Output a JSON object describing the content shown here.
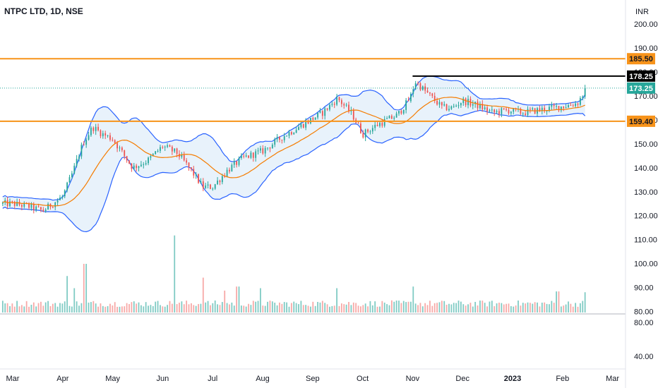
{
  "chart_data": {
    "type": "candlestick",
    "title": "NTPC LTD, 1D, NSE",
    "currency": "INR",
    "price_axis": {
      "ticks": [
        "200.00",
        "190.00",
        "180.00",
        "170.00",
        "160.00",
        "150.00",
        "140.00",
        "130.00",
        "120.00",
        "110.00",
        "100.00",
        "90.00",
        "80.00"
      ],
      "ylim": [
        79,
        210
      ]
    },
    "volume_axis": {
      "ticks": [
        "80.00",
        "40.00"
      ]
    },
    "time_axis": {
      "ticks": [
        "Mar",
        "Apr",
        "May",
        "Jun",
        "Jul",
        "Aug",
        "Sep",
        "Oct",
        "Nov",
        "Dec",
        "2023",
        "Feb",
        "Mar"
      ]
    },
    "price_labels": [
      {
        "text": "185.50",
        "value": 185.5,
        "color": "#f7931a",
        "text_color": "#131722"
      },
      {
        "text": "178.25",
        "value": 178.25,
        "color": "#000000",
        "text_color": "#ffffff"
      },
      {
        "text": "173.25",
        "value": 173.25,
        "color": "#26a69a",
        "text_color": "#ffffff"
      },
      {
        "text": "159.40",
        "value": 159.4,
        "color": "#f7931a",
        "text_color": "#131722"
      }
    ],
    "horizontal_lines": [
      {
        "value": 185.5,
        "color": "#f7931a"
      },
      {
        "value": 159.4,
        "color": "#f7931a"
      }
    ],
    "resistance_segment": {
      "value": 178.25,
      "from_month": 8.0,
      "color": "#000000"
    },
    "keypoints": [
      [
        0,
        125
      ],
      [
        0.3,
        124
      ],
      [
        0.6,
        122
      ],
      [
        1.0,
        128
      ],
      [
        1.2,
        138
      ],
      [
        1.4,
        150
      ],
      [
        1.6,
        157
      ],
      [
        1.8,
        154
      ],
      [
        2.0,
        152
      ],
      [
        2.2,
        146
      ],
      [
        2.4,
        140
      ],
      [
        2.7,
        143
      ],
      [
        3.0,
        149
      ],
      [
        3.3,
        146
      ],
      [
        3.6,
        138
      ],
      [
        3.8,
        132
      ],
      [
        4.0,
        132
      ],
      [
        4.3,
        139
      ],
      [
        4.6,
        144
      ],
      [
        5.0,
        147
      ],
      [
        5.4,
        153
      ],
      [
        5.8,
        158
      ],
      [
        6.2,
        163
      ],
      [
        6.5,
        169
      ],
      [
        6.8,
        162
      ],
      [
        7.0,
        154
      ],
      [
        7.3,
        158
      ],
      [
        7.7,
        162
      ],
      [
        7.95,
        169
      ],
      [
        8.05,
        176
      ],
      [
        8.3,
        171
      ],
      [
        8.6,
        165
      ],
      [
        8.8,
        165
      ],
      [
        9.0,
        168
      ],
      [
        9.3,
        166
      ],
      [
        9.6,
        163
      ],
      [
        9.9,
        164
      ],
      [
        10.2,
        163
      ],
      [
        10.5,
        164
      ],
      [
        10.8,
        165
      ],
      [
        11.1,
        166
      ],
      [
        11.3,
        167
      ],
      [
        11.45,
        172
      ]
    ],
    "volume_spikes": [
      [
        3.25,
        0.95
      ],
      [
        1.45,
        0.6
      ],
      [
        1.1,
        0.45
      ],
      [
        3.8,
        0.43
      ],
      [
        4.5,
        0.32
      ],
      [
        8.0,
        0.32
      ],
      [
        6.5,
        0.3
      ],
      [
        11.45,
        0.25
      ],
      [
        1.25,
        0.3
      ],
      [
        4.95,
        0.3
      ],
      [
        4.25,
        0.27
      ],
      [
        10.9,
        0.26
      ]
    ]
  }
}
